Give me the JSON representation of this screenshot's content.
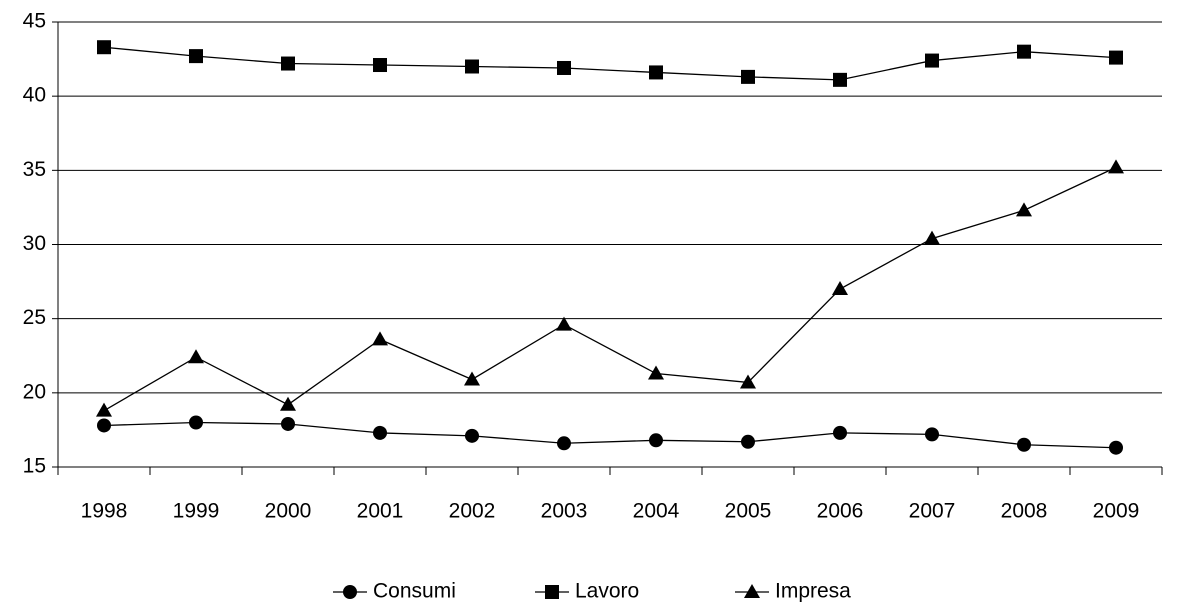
{
  "chart_data": {
    "type": "line",
    "categories": [
      "1998",
      "1999",
      "2000",
      "2001",
      "2002",
      "2003",
      "2004",
      "2005",
      "2006",
      "2007",
      "2008",
      "2009"
    ],
    "series": [
      {
        "name": "Consumi",
        "color": "#000000",
        "marker": "circle",
        "values": [
          17.8,
          18.0,
          17.9,
          17.3,
          17.1,
          16.6,
          16.8,
          16.7,
          17.3,
          17.2,
          16.5,
          16.3
        ]
      },
      {
        "name": "Lavoro",
        "color": "#000000",
        "marker": "square",
        "values": [
          43.3,
          42.7,
          42.2,
          42.1,
          42.0,
          41.9,
          41.6,
          41.3,
          41.1,
          42.4,
          43.0,
          42.6
        ]
      },
      {
        "name": "Impresa",
        "color": "#000000",
        "marker": "triangle",
        "values": [
          18.8,
          22.4,
          19.2,
          23.6,
          20.9,
          24.6,
          21.3,
          20.7,
          27.0,
          30.4,
          32.3,
          35.2
        ]
      }
    ],
    "ylim": [
      15,
      45
    ],
    "yticks": [
      15,
      20,
      25,
      30,
      35,
      40,
      45
    ],
    "grid": true,
    "legend": "bottom"
  }
}
